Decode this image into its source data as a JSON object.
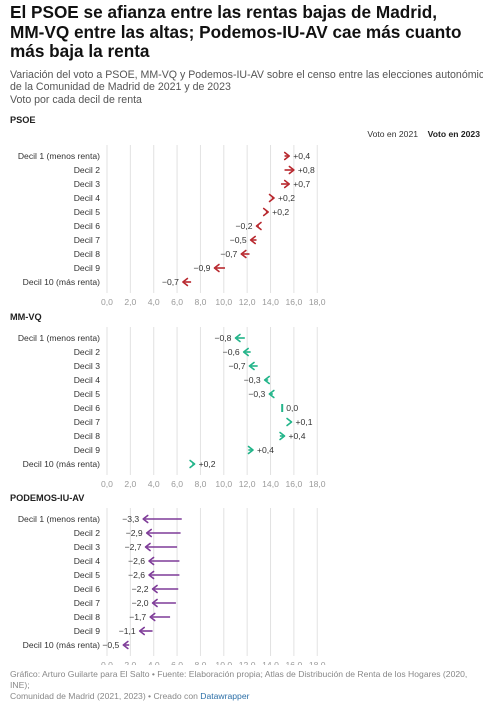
{
  "title": "El PSOE se afianza entre las rentas bajas de Madrid, MM-VQ entre las altas; Podemos-IU-AV cae más cuanto más baja la renta",
  "subtitle": [
    "Variación del voto a PSOE, MM-VQ y Podemos-IU-AV sobre el censo entre las elecciones autonómicas",
    "de la Comunidad de Madrid de 2021 y de 2023",
    "Voto por cada decil de renta"
  ],
  "footer": {
    "line1": "Gráfico: Arturo Guilarte para El Salto • Fuente: Elaboración propia; Atlas de Distribución de Renta de los Hogares (2020, INE);",
    "line2_prefix": "Comunidad de Madrid (2021, 2023) • Creado con ",
    "line2_brand": "Datawrapper"
  },
  "colors": {
    "psoe": "#b8282e",
    "mmvq": "#21b489",
    "podemos": "#7e3b98",
    "grid": "#e2e2e2",
    "axis_text": "#9a9a9a",
    "label_text": "#333333"
  },
  "chart_data": [
    {
      "type": "arrow",
      "title": "PSOE",
      "series_color": "#b8282e",
      "legend": [
        "Voto en 2021",
        "Voto en 2023"
      ],
      "categories": [
        "Decil 1 (menos renta)",
        "Decil 2",
        "Decil 3",
        "Decil 4",
        "Decil 5",
        "Decil 6",
        "Decil 7",
        "Decil 8",
        "Decil 9",
        "Decil 10 (más renta)"
      ],
      "start_2021": [
        15.2,
        15.2,
        14.9,
        14.1,
        13.6,
        13.0,
        12.8,
        12.2,
        10.1,
        7.2
      ],
      "end_2023": [
        15.6,
        16.0,
        15.6,
        14.3,
        13.8,
        12.8,
        12.3,
        11.5,
        9.2,
        6.5
      ],
      "labels": [
        "+0,4",
        "+0,8",
        "+0,7",
        "+0,2",
        "+0,2",
        "−0,2",
        "−0,5",
        "−0,7",
        "−0,9",
        "−0,7"
      ],
      "xlim": [
        0,
        18
      ],
      "ticks": [
        "0,0",
        "2,0",
        "4,0",
        "6,0",
        "8,0",
        "10,0",
        "12,0",
        "14,0",
        "16,0",
        "18,0"
      ],
      "grid": true
    },
    {
      "type": "arrow",
      "title": "MM-VQ",
      "series_color": "#21b489",
      "categories": [
        "Decil 1 (menos renta)",
        "Decil 2",
        "Decil 3",
        "Decil 4",
        "Decil 5",
        "Decil 6",
        "Decil 7",
        "Decil 8",
        "Decil 9",
        "Decil 10 (más renta)"
      ],
      "start_2021": [
        11.8,
        12.3,
        12.9,
        13.8,
        14.2,
        15.0,
        15.7,
        14.8,
        12.1,
        7.3
      ],
      "end_2023": [
        11.0,
        11.7,
        12.2,
        13.5,
        13.9,
        15.0,
        15.8,
        15.2,
        12.5,
        7.5
      ],
      "labels": [
        "−0,8",
        "−0,6",
        "−0,7",
        "−0,3",
        "−0,3",
        "0,0",
        "+0,1",
        "+0,4",
        "+0,4",
        "+0,2"
      ],
      "xlim": [
        0,
        18
      ],
      "ticks": [
        "0,0",
        "2,0",
        "4,0",
        "6,0",
        "8,0",
        "10,0",
        "12,0",
        "14,0",
        "16,0",
        "18,0"
      ],
      "grid": true
    },
    {
      "type": "arrow",
      "title": "PODEMOS-IU-AV",
      "series_color": "#7e3b98",
      "categories": [
        "Decil 1 (menos renta)",
        "Decil 2",
        "Decil 3",
        "Decil 4",
        "Decil 5",
        "Decil 6",
        "Decil 7",
        "Decil 8",
        "Decil 9",
        "Decil 10 (más renta)"
      ],
      "start_2021": [
        6.4,
        6.3,
        6.0,
        6.2,
        6.2,
        6.1,
        5.9,
        5.4,
        3.9,
        1.9
      ],
      "end_2023": [
        3.1,
        3.4,
        3.3,
        3.6,
        3.6,
        3.9,
        3.9,
        3.7,
        2.8,
        1.4
      ],
      "labels": [
        "−3,3",
        "−2,9",
        "−2,7",
        "−2,6",
        "−2,6",
        "−2,2",
        "−2,0",
        "−1,7",
        "−1,1",
        "−0,5"
      ],
      "xlim": [
        0,
        18
      ],
      "ticks": [
        "0,0",
        "2,0",
        "4,0",
        "6,0",
        "8,0",
        "10,0",
        "12,0",
        "14,0",
        "16,0",
        "18,0"
      ],
      "grid": true
    }
  ]
}
